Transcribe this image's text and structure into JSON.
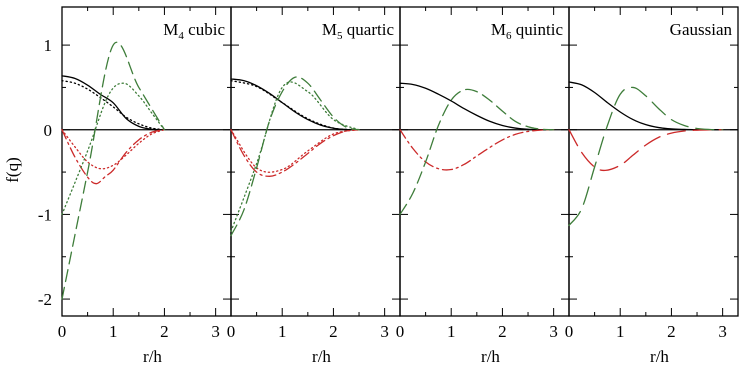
{
  "chart_data": {
    "type": "line",
    "ylabel": "f(q)",
    "xlabel": "r/h",
    "ylim": [
      -2.2,
      1.45
    ],
    "xlim": [
      0,
      3.3
    ],
    "yticks": [
      {
        "value": 1,
        "label": "1"
      },
      {
        "value": 0,
        "label": "0"
      },
      {
        "value": -1,
        "label": "-1"
      },
      {
        "value": -2,
        "label": "-2"
      }
    ],
    "xticks": [
      {
        "value": 0,
        "label": "0"
      },
      {
        "value": 1,
        "label": "1"
      },
      {
        "value": 2,
        "label": "2"
      },
      {
        "value": 3,
        "label": "3"
      }
    ],
    "colors": {
      "kernel": "#000000",
      "first_derivative": "#cc2a2a",
      "second_derivative": "#3e7d3a"
    },
    "panels": [
      {
        "title_main": "M",
        "title_sub": "4",
        "title_rest": " cubic",
        "series": [
          {
            "role": "kernel",
            "style": "solid",
            "x": [
              0,
              0.25,
              0.5,
              0.75,
              1.0,
              1.25,
              1.5,
              1.75,
              2.0
            ],
            "y": [
              0.637,
              0.607,
              0.527,
              0.418,
              0.318,
              0.134,
              0.04,
              0.005,
              0.0
            ]
          },
          {
            "role": "kernel-approx",
            "style": "dotted",
            "x": [
              0,
              0.25,
              0.5,
              0.75,
              1.0,
              1.25,
              1.5,
              1.75,
              2.0
            ],
            "y": [
              0.58,
              0.55,
              0.48,
              0.38,
              0.27,
              0.15,
              0.07,
              0.02,
              0.0
            ]
          },
          {
            "role": "first_derivative",
            "style": "dash-dot",
            "x": [
              0,
              0.25,
              0.5,
              0.67,
              0.85,
              1.0,
              1.25,
              1.5,
              1.75,
              2.0
            ],
            "y": [
              0.0,
              -0.32,
              -0.56,
              -0.637,
              -0.55,
              -0.477,
              -0.269,
              -0.119,
              -0.03,
              0.0
            ]
          },
          {
            "role": "first_derivative-approx",
            "style": "dotted",
            "x": [
              0,
              0.25,
              0.5,
              0.75,
              1.0,
              1.25,
              1.5,
              1.75,
              2.0
            ],
            "y": [
              0.0,
              -0.2,
              -0.38,
              -0.46,
              -0.42,
              -0.3,
              -0.16,
              -0.05,
              0.0
            ]
          },
          {
            "role": "second_derivative",
            "style": "dashed",
            "x": [
              0,
              0.5,
              1.0,
              1.5,
              2.0
            ],
            "y": [
              -2.0,
              -0.5,
              1.0,
              0.5,
              0.0
            ]
          },
          {
            "role": "second_derivative-approx",
            "style": "dotted",
            "x": [
              0,
              0.5,
              0.9,
              1.2,
              1.5,
              1.75,
              2.0
            ],
            "y": [
              -1.0,
              -0.25,
              0.4,
              0.55,
              0.4,
              0.2,
              0.0
            ]
          }
        ]
      },
      {
        "title_main": "M",
        "title_sub": "5",
        "title_rest": " quartic",
        "series": [
          {
            "role": "kernel",
            "style": "solid",
            "x": [
              0,
              0.25,
              0.5,
              0.75,
              1.0,
              1.25,
              1.5,
              1.75,
              2.0,
              2.25,
              2.5
            ],
            "y": [
              0.6,
              0.58,
              0.52,
              0.43,
              0.32,
              0.21,
              0.12,
              0.055,
              0.018,
              0.003,
              0.0
            ]
          },
          {
            "role": "kernel-approx",
            "style": "dotted",
            "x": [
              0,
              0.5,
              1.0,
              1.5,
              2.0,
              2.5
            ],
            "y": [
              0.58,
              0.51,
              0.32,
              0.13,
              0.02,
              0.0
            ]
          },
          {
            "role": "first_derivative",
            "style": "dash-dot",
            "x": [
              0,
              0.25,
              0.5,
              0.75,
              1.0,
              1.25,
              1.5,
              1.75,
              2.0,
              2.25,
              2.5
            ],
            "y": [
              0.0,
              -0.3,
              -0.5,
              -0.55,
              -0.5,
              -0.4,
              -0.28,
              -0.16,
              -0.07,
              -0.015,
              0.0
            ]
          },
          {
            "role": "first_derivative-approx",
            "style": "dotted",
            "x": [
              0,
              0.5,
              1.0,
              1.5,
              2.0,
              2.5
            ],
            "y": [
              0.0,
              -0.45,
              -0.47,
              -0.25,
              -0.05,
              0.0
            ]
          },
          {
            "role": "second_derivative",
            "style": "dashed",
            "x": [
              0,
              0.25,
              0.5,
              0.75,
              1.0,
              1.25,
              1.5,
              1.75,
              2.0,
              2.25,
              2.5
            ],
            "y": [
              -1.25,
              -0.95,
              -0.45,
              0.1,
              0.45,
              0.62,
              0.55,
              0.35,
              0.15,
              0.03,
              0.0
            ]
          },
          {
            "role": "second_derivative-approx",
            "style": "dotted",
            "x": [
              0,
              0.5,
              1.0,
              1.5,
              2.0,
              2.5
            ],
            "y": [
              -1.2,
              -0.4,
              0.5,
              0.45,
              0.12,
              0.0
            ]
          }
        ]
      },
      {
        "title_main": "M",
        "title_sub": "6",
        "title_rest": " quintic",
        "series": [
          {
            "role": "kernel",
            "style": "solid",
            "x": [
              0,
              0.25,
              0.5,
              0.75,
              1.0,
              1.25,
              1.5,
              1.75,
              2.0,
              2.25,
              2.5,
              2.75,
              3.0
            ],
            "y": [
              0.55,
              0.535,
              0.49,
              0.42,
              0.34,
              0.25,
              0.17,
              0.1,
              0.05,
              0.02,
              0.005,
              0.001,
              0.0
            ]
          },
          {
            "role": "first_derivative",
            "style": "dash-dot",
            "x": [
              0,
              0.25,
              0.5,
              0.75,
              1.0,
              1.25,
              1.5,
              1.75,
              2.0,
              2.25,
              2.5,
              2.75,
              3.0
            ],
            "y": [
              0.0,
              -0.22,
              -0.38,
              -0.46,
              -0.47,
              -0.41,
              -0.31,
              -0.21,
              -0.12,
              -0.055,
              -0.02,
              -0.004,
              0.0
            ]
          },
          {
            "role": "second_derivative",
            "style": "dashed",
            "x": [
              0,
              0.25,
              0.5,
              0.75,
              1.0,
              1.25,
              1.5,
              1.75,
              2.0,
              2.25,
              2.5,
              2.75,
              3.0
            ],
            "y": [
              -1.0,
              -0.75,
              -0.38,
              0.05,
              0.35,
              0.47,
              0.45,
              0.35,
              0.22,
              0.1,
              0.035,
              0.007,
              0.0
            ]
          }
        ]
      },
      {
        "title_main": "Gaussian",
        "title_sub": "",
        "title_rest": "",
        "series": [
          {
            "role": "kernel",
            "style": "solid",
            "x": [
              0,
              0.25,
              0.5,
              0.75,
              1.0,
              1.25,
              1.5,
              1.75,
              2.0,
              2.25,
              2.5,
              2.75,
              3.0
            ],
            "y": [
              0.564,
              0.53,
              0.44,
              0.32,
              0.21,
              0.12,
              0.06,
              0.026,
              0.01,
              0.004,
              0.001,
              0.0,
              0.0
            ]
          },
          {
            "role": "first_derivative",
            "style": "long-dash",
            "x": [
              0,
              0.25,
              0.5,
              0.71,
              1.0,
              1.25,
              1.5,
              1.75,
              2.0,
              2.25,
              2.5,
              2.75,
              3.0
            ],
            "y": [
              0.0,
              -0.27,
              -0.44,
              -0.48,
              -0.42,
              -0.3,
              -0.18,
              -0.09,
              -0.04,
              -0.015,
              -0.005,
              -0.001,
              0.0
            ]
          },
          {
            "role": "second_derivative",
            "style": "long-dash",
            "x": [
              0,
              0.25,
              0.5,
              0.75,
              1.0,
              1.25,
              1.5,
              1.75,
              2.0,
              2.25,
              2.5,
              2.75,
              3.0
            ],
            "y": [
              -1.13,
              -0.93,
              -0.44,
              0.05,
              0.42,
              0.5,
              0.4,
              0.25,
              0.12,
              0.05,
              0.015,
              0.003,
              0.0
            ]
          }
        ]
      }
    ]
  }
}
